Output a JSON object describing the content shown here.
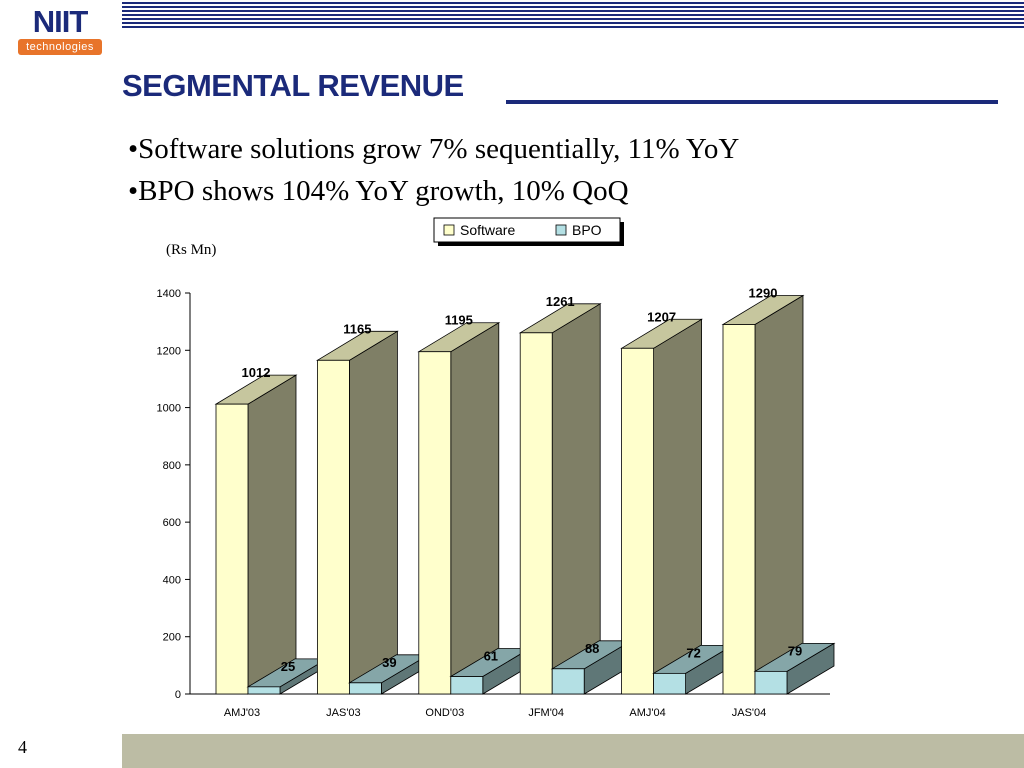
{
  "logo": {
    "name": "NIIT",
    "subtitle": "technologies"
  },
  "slide": {
    "title": "SEGMENTAL REVENUE",
    "bullets": [
      "•Software solutions grow 7% sequentially, 11% YoY",
      "•BPO shows 104% YoY growth, 10% QoQ"
    ],
    "page_number": "4"
  },
  "colors": {
    "brand_blue": "#1b2a7a",
    "logo_orange": "#e8742a",
    "software_front": "#ffffcc",
    "software_side": "#7f7f66",
    "software_top": "#c6c69e",
    "bpo_front": "#b4e0e4",
    "bpo_side": "#5f7777",
    "bpo_top": "#85a6a8",
    "footer": "#bcbca4"
  },
  "chart_data": {
    "type": "bar",
    "unit_label": "(Rs Mn)",
    "categories": [
      "AMJ'03",
      "JAS'03",
      "OND'03",
      "JFM'04",
      "AMJ'04",
      "JAS'04"
    ],
    "series": [
      {
        "name": "Software",
        "values": [
          1012,
          1165,
          1195,
          1261,
          1207,
          1290
        ]
      },
      {
        "name": "BPO",
        "values": [
          25,
          39,
          61,
          88,
          72,
          79
        ]
      }
    ],
    "yticks": [
      0,
      200,
      400,
      600,
      800,
      1000,
      1200,
      1400
    ],
    "ylim": [
      0,
      1400
    ],
    "legend": "top",
    "grid": false,
    "style": "3d-bars"
  }
}
